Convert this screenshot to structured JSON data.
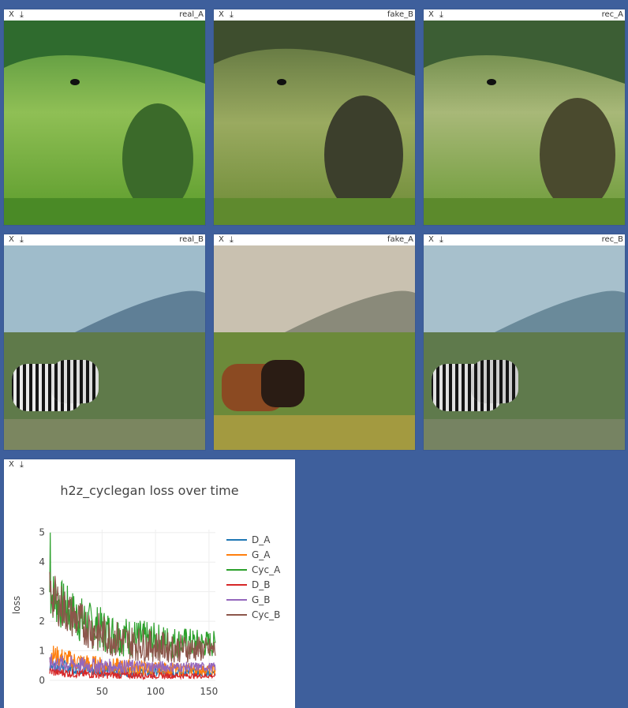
{
  "pane_controls": {
    "close": "X",
    "download": "⤓"
  },
  "panes": [
    {
      "title": "real_A"
    },
    {
      "title": "fake_B"
    },
    {
      "title": "rec_A"
    },
    {
      "title": "real_B"
    },
    {
      "title": "fake_A"
    },
    {
      "title": "rec_B"
    }
  ],
  "colors": {
    "background": "#3e5f9c",
    "D_A": "#1f77b4",
    "G_A": "#ff7f0e",
    "Cyc_A": "#2ca02c",
    "D_B": "#d62728",
    "G_B": "#9467bd",
    "Cyc_B": "#8c564b"
  },
  "chart_data": {
    "type": "line",
    "title": "h2z_cyclegan loss over time",
    "xlabel": "",
    "ylabel": "loss",
    "xlim": [
      1,
      156
    ],
    "ylim": [
      0,
      5.1
    ],
    "xticks": [
      "50",
      "100",
      "150"
    ],
    "xtick_values": [
      50,
      100,
      150
    ],
    "yticks": [
      "0",
      "1",
      "2",
      "3",
      "4",
      "5"
    ],
    "grid": true,
    "legend_position": "right",
    "series": [
      {
        "name": "D_A",
        "start": 0.55,
        "end": 0.25,
        "noise": 0.12
      },
      {
        "name": "G_A",
        "start": 0.9,
        "end": 0.35,
        "noise": 0.18
      },
      {
        "name": "Cyc_A",
        "start": 3.0,
        "end": 1.2,
        "noise": 0.45
      },
      {
        "name": "D_B",
        "start": 0.3,
        "end": 0.15,
        "noise": 0.08
      },
      {
        "name": "G_B",
        "start": 0.6,
        "end": 0.45,
        "noise": 0.15
      },
      {
        "name": "Cyc_B",
        "start": 3.0,
        "end": 1.0,
        "noise": 0.4
      }
    ]
  }
}
